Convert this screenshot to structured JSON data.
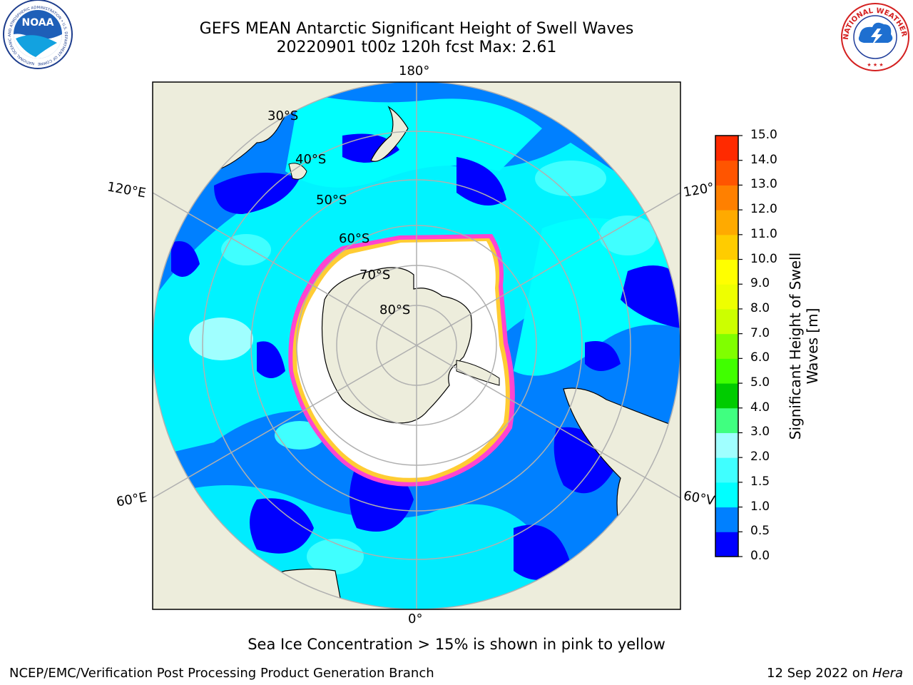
{
  "header": {
    "title": "GEFS MEAN Antarctic Significant Height of Swell Waves",
    "subtitle": "20220901 t00z 120h fcst   Max: 2.61"
  },
  "logos": {
    "left": "NOAA",
    "left_ring": "NATIONAL OCEANIC AND ATMOSPHERIC ADMINISTRATION • U.S. DEPARTMENT OF COMMERCE",
    "right_ring": "NATIONAL WEATHER SERVICE"
  },
  "map": {
    "projection": "south-polar-stereographic",
    "lon_labels": {
      "top": "180°",
      "upper_left": "120°E",
      "lower_left": "60°E",
      "bottom": "0°",
      "upper_right": "120°",
      "lower_right": "60°V"
    },
    "lat_labels": [
      "30°S",
      "40°S",
      "50°S",
      "60°S",
      "70°S",
      "80°S"
    ]
  },
  "colorbar": {
    "label_line1": "Significant Height of Swell",
    "label_line2": "Waves [m]",
    "ticks": [
      "0.0",
      "0.5",
      "1.0",
      "1.5",
      "2.0",
      "3.0",
      "4.0",
      "5.0",
      "6.0",
      "7.0",
      "8.0",
      "9.0",
      "10.0",
      "11.0",
      "12.0",
      "13.0",
      "14.0",
      "15.0"
    ],
    "colors": [
      "#0000ff",
      "#0080ff",
      "#00ffff",
      "#40ffff",
      "#a0ffff",
      "#40ff80",
      "#00cc00",
      "#40ff00",
      "#80ff00",
      "#ccff00",
      "#eeff00",
      "#ffff00",
      "#ffcc00",
      "#ffaa00",
      "#ff8000",
      "#ff5500",
      "#ff2a00",
      "#ff0000"
    ]
  },
  "note": "Sea Ice Concentration > 15% is shown in pink to yellow",
  "footer": {
    "left": "NCEP/EMC/Verification Post Processing Product Generation Branch",
    "right_prefix": "12 Sep 2022 on ",
    "right_host": "Hera"
  }
}
